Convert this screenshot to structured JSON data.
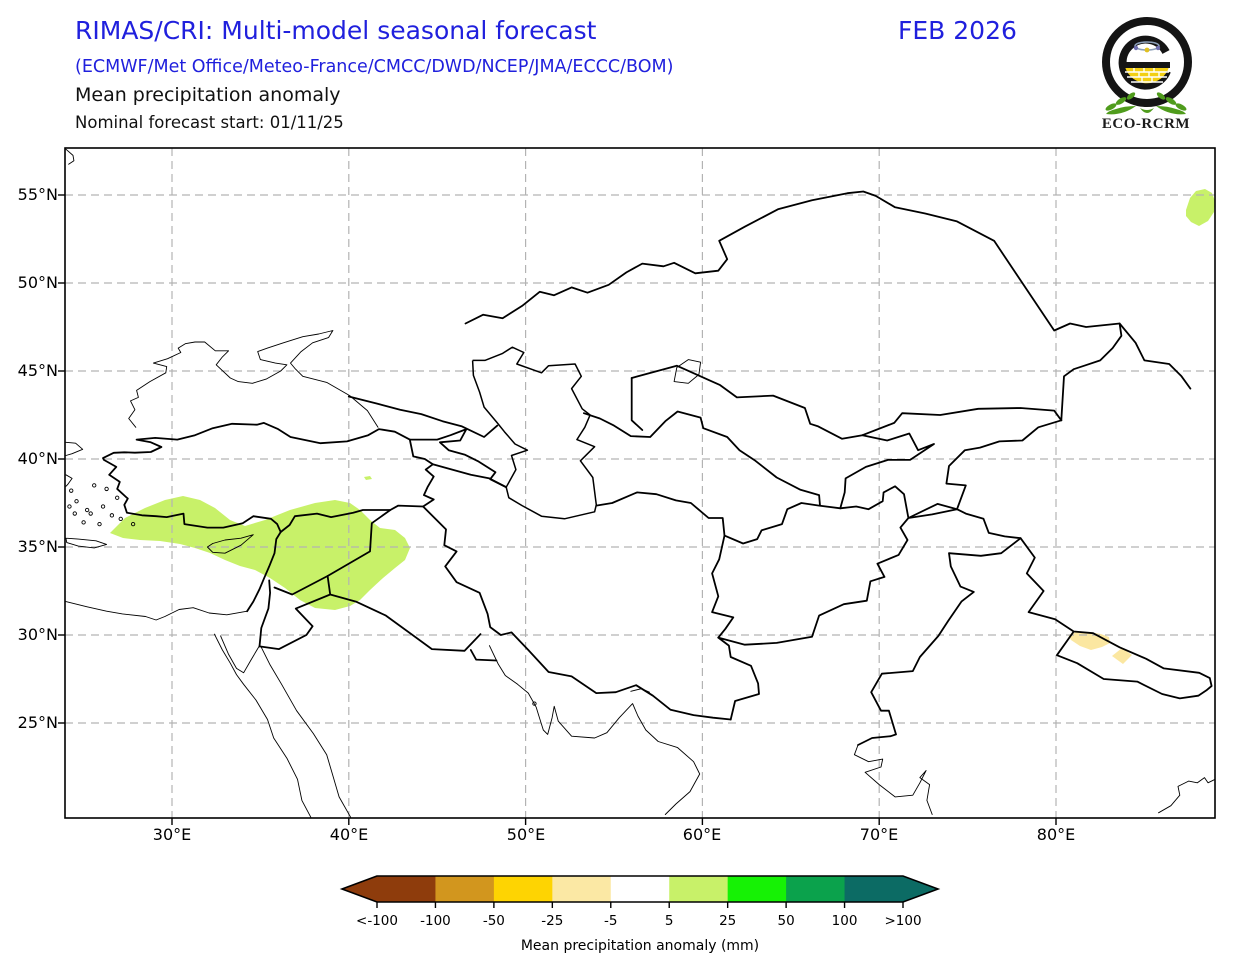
{
  "header": {
    "title": "RIMAS/CRI: Multi-model seasonal forecast",
    "subtitle": "(ECMWF/Met Office/Meteo-France/CMCC/DWD/NCEP/JMA/ECCC/BOM)",
    "product": "Mean precipitation anomaly",
    "forecast_start": "Nominal forecast start: 01/11/25",
    "valid_period": "FEB 2026",
    "accent_blue": "#2020dd"
  },
  "logo": {
    "caption": "ECO-RCRM"
  },
  "map": {
    "lat_ticks": [
      "55°N",
      "50°N",
      "45°N",
      "40°N",
      "35°N",
      "30°N",
      "25°N"
    ],
    "lon_ticks": [
      "30°E",
      "40°E",
      "50°E",
      "60°E",
      "70°E",
      "80°E"
    ]
  },
  "colorbar": {
    "title": "Mean precipitation anomaly (mm)",
    "tick_labels": [
      "<-100",
      "-100",
      "-50",
      "-25",
      "-5",
      "5",
      "25",
      "50",
      "100",
      ">100"
    ],
    "segment_colors": [
      "#8e3c0c",
      "#d2961e",
      "#fed402",
      "#fbe8a4",
      "#ffffff",
      "#c8f169",
      "#16f205",
      "#0ba24c",
      "#0c6b64"
    ]
  },
  "anomaly_colors": {
    "light_green": "#c8f169",
    "pale_yellow": "#fbe7a1"
  }
}
